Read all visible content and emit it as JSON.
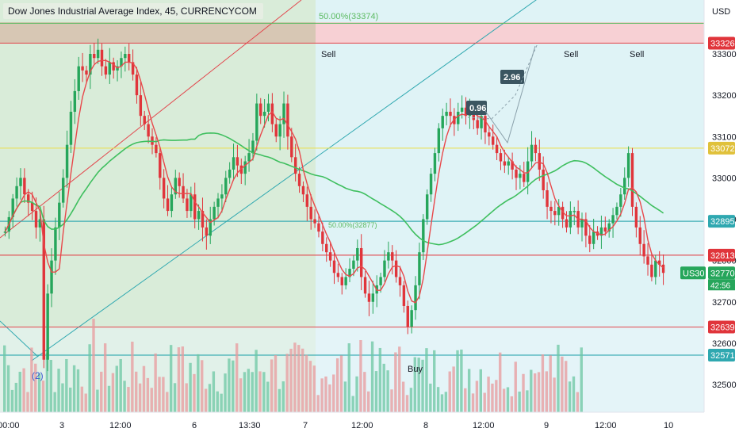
{
  "header": {
    "title": "Dow Jones Industrial Average Index, 45, CURRENCYCOM"
  },
  "currency": "USD",
  "symbol": "US30",
  "countdown": "42:56",
  "colors": {
    "up": "#26a65b",
    "down": "#e0353b",
    "ma_fast": "#e8484b",
    "ma_slow": "#3fbf5f",
    "zone_green": "#d9ecd9",
    "zone_cyan": "#dff3f6",
    "zone_red": "#f7d0d4",
    "line_red": "#e2484e",
    "line_teal": "#2fa8b0",
    "line_yellow": "#e9e25a",
    "line_green": "#5dbb63"
  },
  "annotations": {
    "fib_label": "50.00%(33374)",
    "fib_label_2": "50.00%(32877)",
    "sell_labels": [
      "Sell",
      "Sell",
      "Sell"
    ],
    "buy_label": "Buy",
    "wave_label": "(2)",
    "box_1": "0.96",
    "box_2": "2.96"
  },
  "chart_data": {
    "type": "candlestick",
    "title": "Dow Jones Industrial Average Index, 45, CURRENCYCOM",
    "xlabel": "",
    "ylabel": "USD",
    "ylim": [
      32440,
      33500
    ],
    "x_ticks": [
      "00:00",
      "3",
      "12:00",
      "6",
      "13:30",
      "7",
      "12:00",
      "8",
      "12:00",
      "9",
      "12:00",
      "10"
    ],
    "y_ticks": [
      32500,
      32600,
      32700,
      32800,
      32900,
      33000,
      33100,
      33200,
      33300
    ],
    "price_tags": [
      {
        "label": "33326",
        "value": 33326,
        "color": "#e0353b"
      },
      {
        "label": "33072",
        "value": 33072,
        "color": "#e0c13b"
      },
      {
        "label": "32895",
        "value": 32895,
        "color": "#2fa8b0"
      },
      {
        "label": "32813",
        "value": 32813,
        "color": "#e0353b"
      },
      {
        "label": "32770",
        "value": 32770,
        "color": "#26a65b"
      },
      {
        "label": "32639",
        "value": 32639,
        "color": "#e0353b"
      },
      {
        "label": "32571",
        "value": 32571,
        "color": "#2fa8b0"
      }
    ],
    "horizontal_levels": [
      33374,
      33326,
      33072,
      32895,
      32813,
      32639,
      32571
    ],
    "last_price": 32770,
    "close_series": [
      32870,
      32905,
      32950,
      32980,
      33000,
      32960,
      32940,
      32920,
      32880,
      32900,
      32560,
      32720,
      32800,
      32880,
      32940,
      33000,
      33080,
      33160,
      33210,
      33270,
      33260,
      33250,
      33300,
      33290,
      33310,
      33270,
      33250,
      33280,
      33260,
      33270,
      33290,
      33300,
      33280,
      33250,
      33200,
      33150,
      33130,
      33100,
      33080,
      33060,
      33000,
      32950,
      32920,
      32960,
      33000,
      32980,
      32950,
      32920,
      32960,
      32900,
      32920,
      32880,
      32860,
      32900,
      32930,
      32950,
      32960,
      33000,
      33020,
      33050,
      33030,
      33010,
      33040,
      33060,
      33090,
      33180,
      33150,
      33160,
      33180,
      33130,
      33100,
      33130,
      33180,
      33100,
      33050,
      33010,
      32980,
      32960,
      32930,
      32900,
      32890,
      32870,
      32840,
      32820,
      32800,
      32770,
      32760,
      32740,
      32760,
      32780,
      32800,
      32830,
      32760,
      32720,
      32700,
      32720,
      32740,
      32760,
      32800,
      32820,
      32800,
      32760,
      32740,
      32690,
      32640,
      32680,
      32740,
      32820,
      32900,
      32960,
      33010,
      33060,
      33120,
      33150,
      33160,
      33150,
      33130,
      33160,
      33170,
      33150,
      33170,
      33140,
      33120,
      33150,
      33110,
      33100,
      33080,
      33060,
      33040,
      33030,
      33040,
      33020,
      33000,
      33010,
      32990,
      33040,
      33080,
      33060,
      33020,
      32970,
      32930,
      32920,
      32910,
      32930,
      32900,
      32880,
      32920,
      32920,
      32880,
      32900,
      32860,
      32840,
      32870,
      32860,
      32880,
      32870,
      32890,
      32910,
      32930,
      32960,
      33000,
      33060,
      32930,
      32880,
      32840,
      32810,
      32790,
      32760,
      32800,
      32790,
      32770
    ],
    "volume_bars": 150
  }
}
